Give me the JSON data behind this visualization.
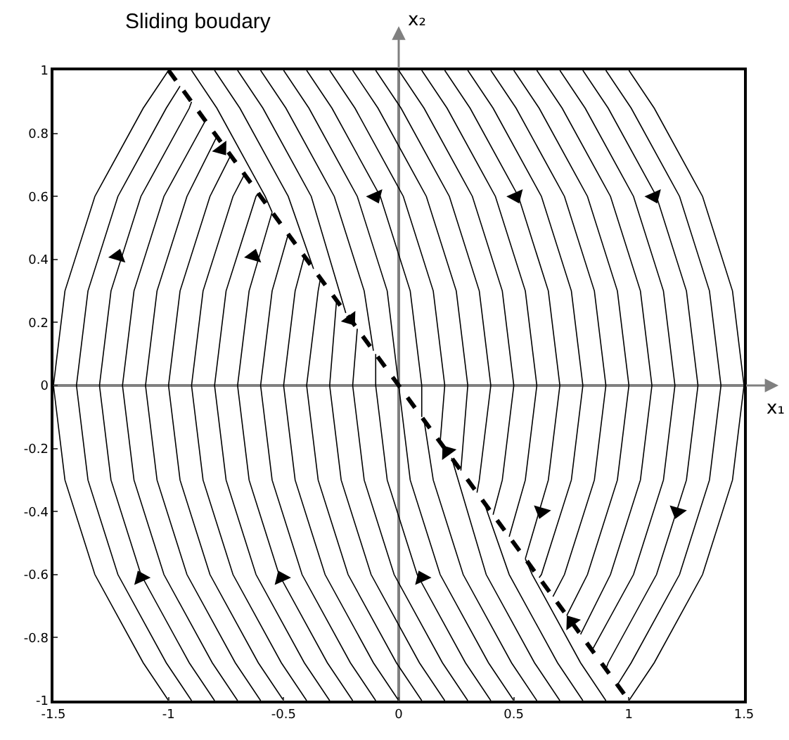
{
  "chart_data": {
    "type": "line",
    "xlabel": "x₁",
    "ylabel": "x₂",
    "annotations": [
      "Sliding boudary"
    ],
    "xlim": [
      -1.5,
      1.5
    ],
    "xticks": [
      -1.5,
      -1,
      -0.5,
      0,
      0.5,
      1,
      1.5
    ],
    "ylim": [
      -1,
      1
    ],
    "yticks": [
      -1,
      -0.8,
      -0.6,
      -0.4,
      -0.2,
      0,
      0.2,
      0.4,
      0.6,
      0.8,
      1
    ],
    "series": [
      {
        "color": "#000000",
        "x": [
          -1,
          -1.11,
          -1.32,
          -1.45,
          -1.5,
          -1.45,
          -1.32,
          -1.11,
          -1
        ],
        "values": [
          -1,
          -0.88,
          -0.6,
          -0.3,
          0,
          0.3,
          0.6,
          0.88,
          1
        ]
      },
      {
        "color": "#000000",
        "x": [
          -0.9,
          -1.01,
          -1.22,
          -1.35,
          -1.4,
          -1.35,
          -1.22,
          -1.01,
          -0.95
        ],
        "values": [
          -1,
          -0.88,
          -0.6,
          -0.3,
          0,
          0.3,
          0.6,
          0.88,
          0.95
        ]
      },
      {
        "color": "#000000",
        "x": [
          -0.8,
          -0.91,
          -1.12,
          -1.25,
          -1.3,
          -1.25,
          -1.12,
          -0.91,
          -0.9
        ],
        "values": [
          -1,
          -0.88,
          -0.6,
          -0.3,
          0,
          0.3,
          0.6,
          0.88,
          0.9
        ]
      },
      {
        "color": "#000000",
        "x": [
          -0.7,
          -0.81,
          -1.02,
          -1.15,
          -1.2,
          -1.15,
          -1.02,
          -0.84
        ],
        "values": [
          -1,
          -0.88,
          -0.6,
          -0.3,
          0,
          0.3,
          0.6,
          0.84
        ]
      },
      {
        "color": "#000000",
        "x": [
          -0.6,
          -0.71,
          -0.92,
          -1.05,
          -1.1,
          -1.05,
          -0.92,
          -0.79
        ],
        "values": [
          -1,
          -0.88,
          -0.6,
          -0.3,
          0,
          0.3,
          0.6,
          0.79
        ]
      },
      {
        "color": "#000000",
        "x": [
          -0.5,
          -0.61,
          -0.82,
          -0.95,
          -1,
          -0.95,
          -0.82,
          -0.73
        ],
        "values": [
          -1,
          -0.88,
          -0.6,
          -0.3,
          0,
          0.3,
          0.6,
          0.73
        ]
      },
      {
        "color": "#000000",
        "x": [
          -0.4,
          -0.51,
          -0.72,
          -0.85,
          -0.9,
          -0.85,
          -0.72,
          -0.67
        ],
        "values": [
          -1,
          -0.88,
          -0.6,
          -0.3,
          0,
          0.3,
          0.6,
          0.67
        ]
      },
      {
        "color": "#000000",
        "x": [
          -0.3,
          -0.41,
          -0.62,
          -0.75,
          -0.8,
          -0.75,
          -0.62,
          -0.61
        ],
        "values": [
          -1,
          -0.88,
          -0.6,
          -0.3,
          0,
          0.3,
          0.6,
          0.61
        ]
      },
      {
        "color": "#000000",
        "x": [
          -0.2,
          -0.31,
          -0.52,
          -0.65,
          -0.7,
          -0.65,
          -0.55
        ],
        "values": [
          -1,
          -0.88,
          -0.6,
          -0.3,
          0,
          0.3,
          0.55
        ]
      },
      {
        "color": "#000000",
        "x": [
          -0.1,
          -0.21,
          -0.42,
          -0.55,
          -0.6,
          -0.55,
          -0.48
        ],
        "values": [
          -1,
          -0.88,
          -0.6,
          -0.3,
          0,
          0.3,
          0.48
        ]
      },
      {
        "color": "#000000",
        "x": [
          0,
          -0.11,
          -0.32,
          -0.45,
          -0.5,
          -0.45,
          -0.41
        ],
        "values": [
          -1,
          -0.88,
          -0.6,
          -0.3,
          0,
          0.3,
          0.41
        ]
      },
      {
        "color": "#000000",
        "x": [
          0.1,
          -0.01,
          -0.22,
          -0.35,
          -0.4,
          -0.35,
          -0.34
        ],
        "values": [
          -1,
          -0.88,
          -0.6,
          -0.3,
          0,
          0.3,
          0.34
        ]
      },
      {
        "color": "#000000",
        "x": [
          0.2,
          0.09,
          -0.12,
          -0.25,
          -0.3,
          -0.27
        ],
        "values": [
          -1,
          -0.88,
          -0.6,
          -0.3,
          0,
          0.27
        ]
      },
      {
        "color": "#000000",
        "x": [
          0.3,
          0.19,
          -0.02,
          -0.15,
          -0.2,
          -0.18
        ],
        "values": [
          -1,
          -0.88,
          -0.6,
          -0.3,
          0,
          0.18
        ]
      },
      {
        "color": "#000000",
        "x": [
          0.4,
          0.29,
          0.08,
          -0.05,
          -0.1,
          -0.1
        ],
        "values": [
          -1,
          -0.88,
          -0.6,
          -0.3,
          0,
          0.1
        ]
      },
      {
        "color": "#000000",
        "x": [
          -0.5,
          -0.39,
          -0.18,
          -0.05,
          0,
          0.05,
          0.18,
          0.39,
          0.5
        ],
        "values": [
          1,
          0.88,
          0.6,
          0.3,
          0,
          -0.3,
          -0.6,
          -0.88,
          -1
        ]
      },
      {
        "color": "#000000",
        "x": [
          0.6,
          0.49,
          0.28,
          0.15,
          0.11
        ],
        "values": [
          -1,
          -0.88,
          -0.6,
          -0.3,
          -0.11
        ]
      },
      {
        "color": "#000000",
        "x": [
          0.7,
          0.59,
          0.38,
          0.23
        ],
        "values": [
          -1,
          -0.88,
          -0.6,
          -0.23
        ]
      },
      {
        "color": "#000000",
        "x": [
          0.8,
          0.69,
          0.48,
          0.37
        ],
        "values": [
          -1,
          -0.88,
          -0.6,
          -0.37
        ]
      },
      {
        "color": "#000000",
        "x": [
          0.9,
          0.79,
          0.58,
          0.55
        ],
        "values": [
          -1,
          -0.88,
          -0.6,
          -0.55
        ]
      },
      {
        "color": "#000000",
        "x": [
          1,
          1.11,
          1.32,
          1.45,
          1.5,
          1.45,
          1.32,
          1.11,
          1
        ],
        "values": [
          1,
          0.88,
          0.6,
          0.3,
          0,
          -0.3,
          -0.6,
          -0.88,
          -1
        ]
      },
      {
        "color": "#000000",
        "x": [
          0.9,
          1.01,
          1.22,
          1.35,
          1.4,
          1.35,
          1.22,
          1.01,
          0.95
        ],
        "values": [
          1,
          0.88,
          0.6,
          0.3,
          0,
          -0.3,
          -0.6,
          -0.88,
          -0.95
        ]
      },
      {
        "color": "#000000",
        "x": [
          0.8,
          0.91,
          1.12,
          1.25,
          1.3,
          1.25,
          1.12,
          0.91,
          0.9
        ],
        "values": [
          1,
          0.88,
          0.6,
          0.3,
          0,
          -0.3,
          -0.6,
          -0.88,
          -0.9
        ]
      },
      {
        "color": "#000000",
        "x": [
          0.7,
          0.81,
          1.02,
          1.15,
          1.2,
          1.15,
          1.02,
          0.84
        ],
        "values": [
          1,
          0.88,
          0.6,
          0.3,
          0,
          -0.3,
          -0.6,
          -0.84
        ]
      },
      {
        "color": "#000000",
        "x": [
          0.6,
          0.71,
          0.92,
          1.05,
          1.1,
          1.05,
          0.92,
          0.79
        ],
        "values": [
          1,
          0.88,
          0.6,
          0.3,
          0,
          -0.3,
          -0.6,
          -0.79
        ]
      },
      {
        "color": "#000000",
        "x": [
          0.5,
          0.61,
          0.82,
          0.95,
          1,
          0.95,
          0.82,
          0.73
        ],
        "values": [
          1,
          0.88,
          0.6,
          0.3,
          0,
          -0.3,
          -0.6,
          -0.73
        ]
      },
      {
        "color": "#000000",
        "x": [
          0.4,
          0.51,
          0.72,
          0.85,
          0.9,
          0.85,
          0.72,
          0.67
        ],
        "values": [
          1,
          0.88,
          0.6,
          0.3,
          0,
          -0.3,
          -0.6,
          -0.67
        ]
      },
      {
        "color": "#000000",
        "x": [
          0.3,
          0.41,
          0.62,
          0.75,
          0.8,
          0.75,
          0.62,
          0.61
        ],
        "values": [
          1,
          0.88,
          0.6,
          0.3,
          0,
          -0.3,
          -0.6,
          -0.61
        ]
      },
      {
        "color": "#000000",
        "x": [
          0.2,
          0.31,
          0.52,
          0.65,
          0.7,
          0.65,
          0.55
        ],
        "values": [
          1,
          0.88,
          0.6,
          0.3,
          0,
          -0.3,
          -0.55
        ]
      },
      {
        "color": "#000000",
        "x": [
          0.1,
          0.21,
          0.42,
          0.55,
          0.6,
          0.55,
          0.48
        ],
        "values": [
          1,
          0.88,
          0.6,
          0.3,
          0,
          -0.3,
          -0.48
        ]
      },
      {
        "color": "#000000",
        "x": [
          0,
          0.11,
          0.32,
          0.45,
          0.5,
          0.45,
          0.41
        ],
        "values": [
          1,
          0.88,
          0.6,
          0.3,
          0,
          -0.3,
          -0.41
        ]
      },
      {
        "color": "#000000",
        "x": [
          -0.1,
          0.01,
          0.22,
          0.35,
          0.4,
          0.35,
          0.34
        ],
        "values": [
          1,
          0.88,
          0.6,
          0.3,
          0,
          -0.3,
          -0.34
        ]
      },
      {
        "color": "#000000",
        "x": [
          -0.2,
          -0.09,
          0.12,
          0.25,
          0.3,
          0.27
        ],
        "values": [
          1,
          0.88,
          0.6,
          0.3,
          0,
          -0.27
        ]
      },
      {
        "color": "#000000",
        "x": [
          -0.3,
          -0.19,
          0.02,
          0.15,
          0.2,
          0.18
        ],
        "values": [
          1,
          0.88,
          0.6,
          0.3,
          0,
          -0.18
        ]
      },
      {
        "color": "#000000",
        "x": [
          -0.4,
          -0.29,
          -0.08,
          0.05,
          0.1,
          0.1
        ],
        "values": [
          1,
          0.88,
          0.6,
          0.3,
          0,
          -0.1
        ]
      },
      {
        "color": "#000000",
        "x": [
          -0.6,
          -0.49,
          -0.28,
          -0.15,
          -0.11
        ],
        "values": [
          1,
          0.88,
          0.6,
          0.3,
          0.11
        ]
      },
      {
        "color": "#000000",
        "x": [
          -0.7,
          -0.59,
          -0.38,
          -0.23
        ],
        "values": [
          1,
          0.88,
          0.6,
          0.23
        ]
      },
      {
        "color": "#000000",
        "x": [
          -0.8,
          -0.69,
          -0.48,
          -0.37
        ],
        "values": [
          1,
          0.88,
          0.6,
          0.37
        ]
      },
      {
        "color": "#000000",
        "x": [
          -0.9,
          -0.79,
          -0.58,
          -0.55
        ],
        "values": [
          1,
          0.88,
          0.6,
          0.55
        ]
      },
      {
        "color": "#000000",
        "line_style": "dashed",
        "x": [
          -1,
          1
        ],
        "values": [
          1,
          -1
        ]
      },
      {
        "type": "scatter",
        "marker": "triangle",
        "color": "#000000",
        "x": [
          -0.77,
          -0.21,
          0.21,
          0.75,
          -1.22,
          -0.63,
          -0.1,
          0.51,
          1.11,
          -1.12,
          -0.51,
          0.1,
          0.62,
          1.21
        ],
        "values": [
          0.75,
          0.21,
          -0.21,
          -0.75,
          0.41,
          0.41,
          0.6,
          0.6,
          0.6,
          -0.61,
          -0.61,
          -0.61,
          -0.4,
          -0.4
        ]
      }
    ]
  }
}
